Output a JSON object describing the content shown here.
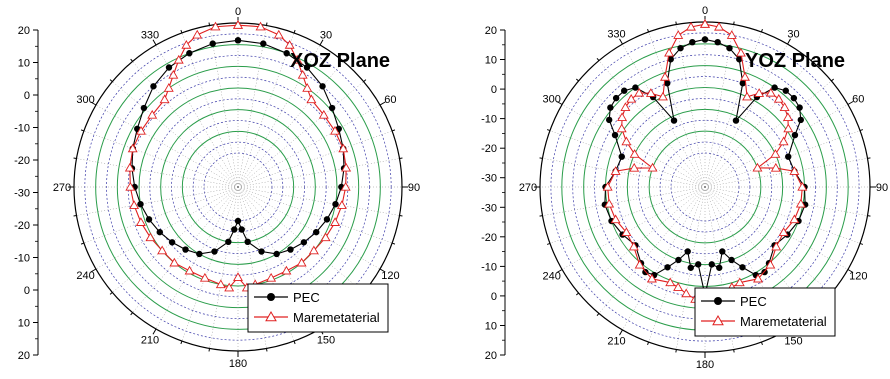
{
  "chart_data": [
    {
      "type": "polar-line",
      "title": "XOZ Plane",
      "angle_ticks": [
        "0",
        "30",
        "60",
        "90",
        "120",
        "150",
        "180",
        "210",
        "240",
        "270",
        "300",
        "330"
      ],
      "radial_axis_ticks": [
        "20",
        "10",
        "0",
        "-10",
        "-20",
        "-30",
        "-20",
        "-10",
        "0",
        "10",
        "20"
      ],
      "rlim": [
        -40,
        20
      ],
      "grid": true,
      "legend_position": "bottom-right",
      "legend": [
        "PEC",
        "Maremetaterial"
      ],
      "series": [
        {
          "name": "PEC",
          "color": "#000000",
          "marker": "filled-circle",
          "points": [
            [
              0,
              12
            ],
            [
              10,
              11.5
            ],
            [
              20,
              10
            ],
            [
              30,
              8
            ],
            [
              40,
              5
            ],
            [
              50,
              1
            ],
            [
              60,
              -2
            ],
            [
              70,
              -4
            ],
            [
              80,
              -6
            ],
            [
              90,
              -8
            ],
            [
              100,
              -10
            ],
            [
              110,
              -12
            ],
            [
              120,
              -14
            ],
            [
              130,
              -16
            ],
            [
              140,
              -18
            ],
            [
              150,
              -20
            ],
            [
              160,
              -24
            ],
            [
              170,
              -30
            ],
            [
              175,
              -36
            ],
            [
              180,
              -40
            ],
            [
              185,
              -36
            ],
            [
              190,
              -30
            ],
            [
              200,
              -24
            ],
            [
              210,
              -20
            ],
            [
              220,
              -18
            ],
            [
              230,
              -16
            ],
            [
              240,
              -14
            ],
            [
              250,
              -12
            ],
            [
              260,
              -10
            ],
            [
              270,
              -8
            ],
            [
              280,
              -6
            ],
            [
              290,
              -4
            ],
            [
              300,
              -2
            ],
            [
              310,
              1
            ],
            [
              320,
              5
            ],
            [
              330,
              8
            ],
            [
              340,
              10
            ],
            [
              350,
              11.5
            ],
            [
              360,
              12
            ]
          ]
        },
        {
          "name": "Maremetaterial",
          "color": "#e02020",
          "marker": "open-triangle",
          "points": [
            [
              0,
              19
            ],
            [
              8,
              19
            ],
            [
              15,
              17
            ],
            [
              20,
              14
            ],
            [
              25,
              9
            ],
            [
              30,
              4
            ],
            [
              35,
              0
            ],
            [
              40,
              -3
            ],
            [
              50,
              -4
            ],
            [
              60,
              -4
            ],
            [
              70,
              -4
            ],
            [
              80,
              -5
            ],
            [
              90,
              -6
            ],
            [
              100,
              -7
            ],
            [
              110,
              -8
            ],
            [
              120,
              -9
            ],
            [
              130,
              -10
            ],
            [
              140,
              -10
            ],
            [
              150,
              -11
            ],
            [
              160,
              -11
            ],
            [
              170,
              -10
            ],
            [
              175,
              -9
            ],
            [
              180,
              -14
            ],
            [
              185,
              -9
            ],
            [
              190,
              -10
            ],
            [
              200,
              -11
            ],
            [
              210,
              -11
            ],
            [
              220,
              -10
            ],
            [
              230,
              -10
            ],
            [
              240,
              -9
            ],
            [
              250,
              -8
            ],
            [
              260,
              -7
            ],
            [
              270,
              -6
            ],
            [
              280,
              -5
            ],
            [
              290,
              -4
            ],
            [
              300,
              -4
            ],
            [
              310,
              -4
            ],
            [
              320,
              -3
            ],
            [
              325,
              0
            ],
            [
              330,
              4
            ],
            [
              335,
              9
            ],
            [
              340,
              14
            ],
            [
              345,
              17
            ],
            [
              352,
              19
            ],
            [
              360,
              19
            ]
          ]
        }
      ]
    },
    {
      "type": "polar-line",
      "title": "YOZ Plane",
      "angle_ticks": [
        "0",
        "30",
        "60",
        "90",
        "120",
        "150",
        "180",
        "210",
        "240",
        "270",
        "300",
        "330"
      ],
      "radial_axis_ticks": [
        "20",
        "10",
        "0",
        "-10",
        "-20",
        "-30",
        "-30",
        "-20",
        "-10",
        "0",
        "10",
        "20"
      ],
      "rlim": [
        -40,
        20
      ],
      "grid": true,
      "legend_position": "bottom-right",
      "legend": [
        "PEC",
        "Maremetaterial"
      ],
      "series": [
        {
          "name": "PEC",
          "color": "#000000",
          "marker": "filled-circle",
          "points": [
            [
              0,
              12
            ],
            [
              5,
              11
            ],
            [
              10,
              9
            ],
            [
              15,
              5
            ],
            [
              20,
              -5
            ],
            [
              25,
              -22
            ],
            [
              30,
              -8
            ],
            [
              35,
              0
            ],
            [
              40,
              2
            ],
            [
              45,
              2
            ],
            [
              50,
              1
            ],
            [
              55,
              -2
            ],
            [
              60,
              -8
            ],
            [
              70,
              -15
            ],
            [
              80,
              -14
            ],
            [
              90,
              -10
            ],
            [
              100,
              -9
            ],
            [
              110,
              -10
            ],
            [
              120,
              -12
            ],
            [
              130,
              -14
            ],
            [
              140,
              -10
            ],
            [
              145,
              -8
            ],
            [
              150,
              -9
            ],
            [
              155,
              -15
            ],
            [
              160,
              -20
            ],
            [
              165,
              -25
            ],
            [
              170,
              -18
            ],
            [
              175,
              -20
            ],
            [
              180,
              -6
            ],
            [
              185,
              -20
            ],
            [
              190,
              -18
            ],
            [
              195,
              -25
            ],
            [
              200,
              -20
            ],
            [
              205,
              -15
            ],
            [
              210,
              -9
            ],
            [
              215,
              -8
            ],
            [
              220,
              -10
            ],
            [
              230,
              -14
            ],
            [
              240,
              -12
            ],
            [
              250,
              -10
            ],
            [
              260,
              -9
            ],
            [
              270,
              -10
            ],
            [
              280,
              -14
            ],
            [
              290,
              -15
            ],
            [
              300,
              -8
            ],
            [
              305,
              -2
            ],
            [
              310,
              1
            ],
            [
              315,
              2
            ],
            [
              320,
              2
            ],
            [
              325,
              0
            ],
            [
              330,
              -8
            ],
            [
              335,
              -22
            ],
            [
              340,
              -5
            ],
            [
              345,
              5
            ],
            [
              350,
              9
            ],
            [
              355,
              11
            ],
            [
              360,
              12
            ]
          ]
        },
        {
          "name": "Maremetaterial",
          "color": "#e02020",
          "marker": "open-triangle",
          "points": [
            [
              0,
              19
            ],
            [
              5,
              18
            ],
            [
              10,
              15
            ],
            [
              15,
              8
            ],
            [
              20,
              -2
            ],
            [
              25,
              -10
            ],
            [
              30,
              -6
            ],
            [
              35,
              -3
            ],
            [
              40,
              -3
            ],
            [
              45,
              -4
            ],
            [
              50,
              -6
            ],
            [
              55,
              -9
            ],
            [
              60,
              -14
            ],
            [
              65,
              -20
            ],
            [
              70,
              -30
            ],
            [
              75,
              -22
            ],
            [
              80,
              -14
            ],
            [
              90,
              -11
            ],
            [
              100,
              -11
            ],
            [
              110,
              -12
            ],
            [
              120,
              -14
            ],
            [
              130,
              -13
            ],
            [
              140,
              -9
            ],
            [
              150,
              -7
            ],
            [
              160,
              -9
            ],
            [
              165,
              -8
            ],
            [
              170,
              -6
            ],
            [
              175,
              -4
            ],
            [
              180,
              -2
            ],
            [
              185,
              -4
            ],
            [
              190,
              -6
            ],
            [
              195,
              -8
            ],
            [
              200,
              -9
            ],
            [
              210,
              -7
            ],
            [
              220,
              -9
            ],
            [
              230,
              -13
            ],
            [
              240,
              -14
            ],
            [
              250,
              -12
            ],
            [
              260,
              -11
            ],
            [
              270,
              -11
            ],
            [
              280,
              -14
            ],
            [
              285,
              -22
            ],
            [
              290,
              -30
            ],
            [
              295,
              -20
            ],
            [
              300,
              -14
            ],
            [
              305,
              -9
            ],
            [
              310,
              -6
            ],
            [
              315,
              -4
            ],
            [
              320,
              -3
            ],
            [
              325,
              -3
            ],
            [
              330,
              -6
            ],
            [
              335,
              -10
            ],
            [
              340,
              -2
            ],
            [
              345,
              8
            ],
            [
              350,
              15
            ],
            [
              355,
              18
            ],
            [
              360,
              19
            ]
          ]
        }
      ]
    }
  ]
}
